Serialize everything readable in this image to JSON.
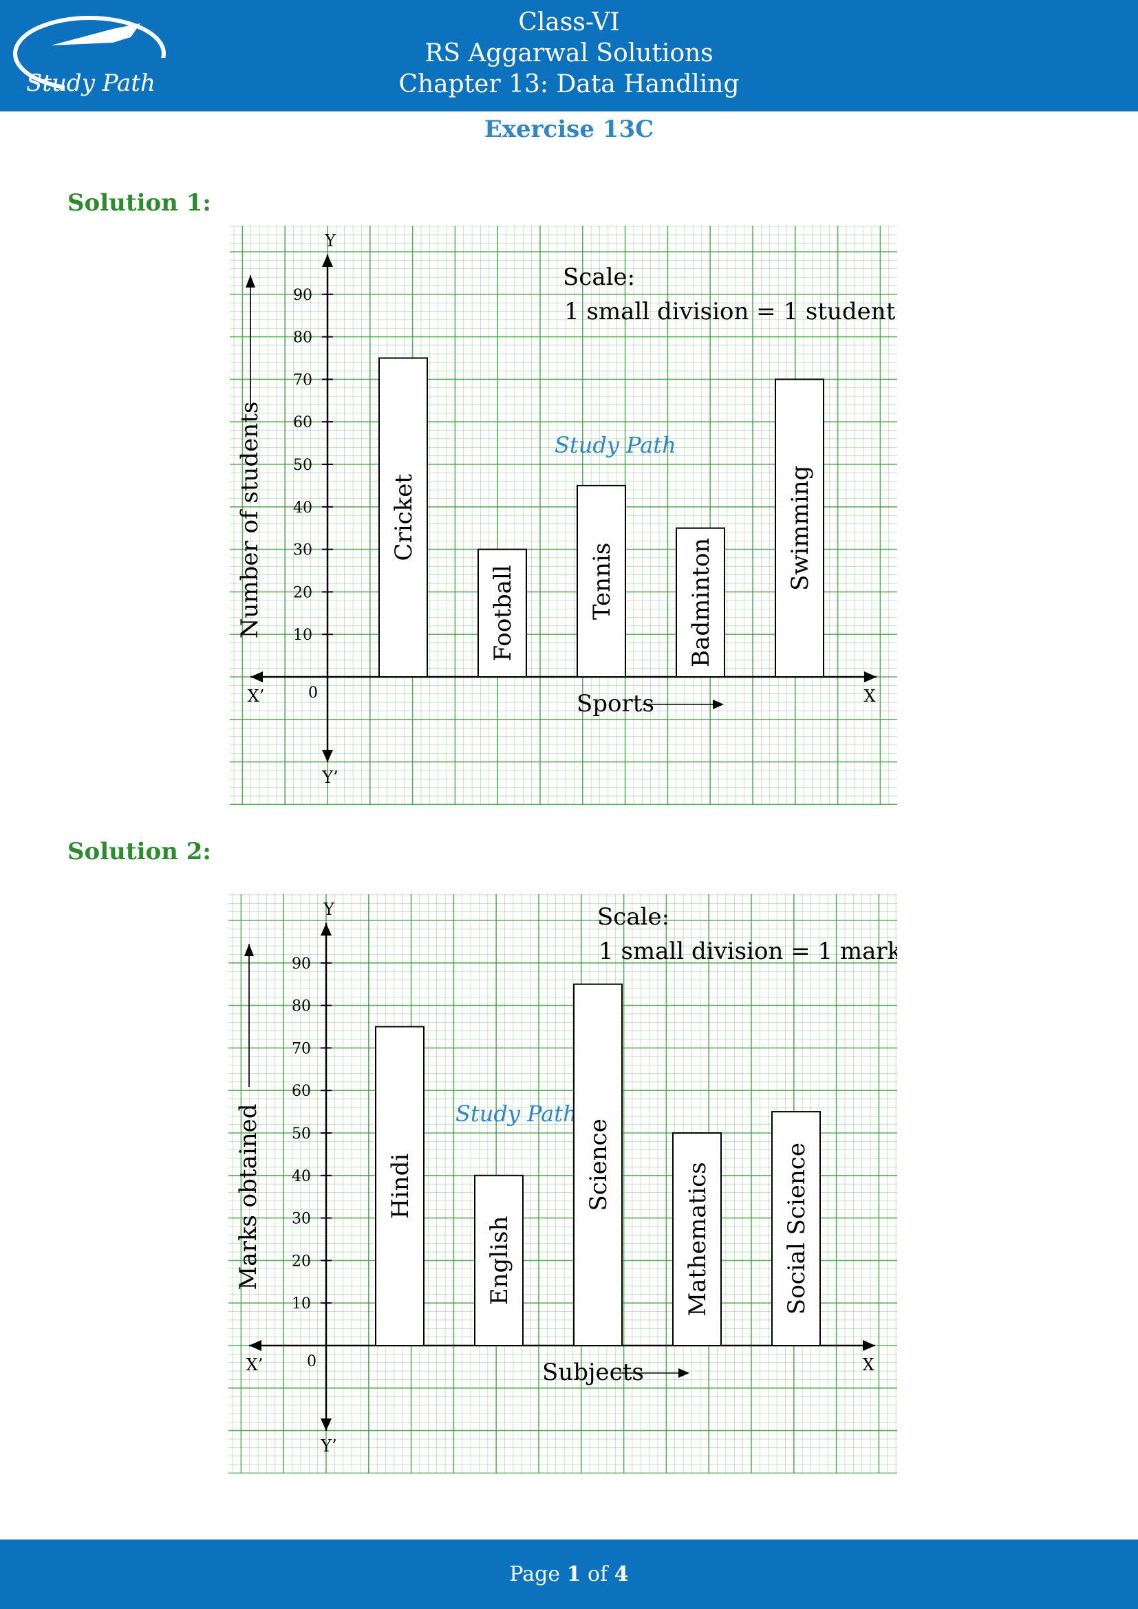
{
  "header": {
    "line1": "Class-VI",
    "line2": "RS Aggarwal Solutions",
    "line3": "Chapter 13: Data Handling",
    "logo_text": "Study Path"
  },
  "exercise_title": "Exercise 13C",
  "watermark_text": "Study Path",
  "solutions": [
    {
      "label": "Solution 1:"
    },
    {
      "label": "Solution 2:"
    }
  ],
  "chart_data": [
    {
      "type": "bar",
      "categories": [
        "Cricket",
        "Football",
        "Tennis",
        "Badminton",
        "Swimming"
      ],
      "values": [
        75,
        30,
        45,
        35,
        70
      ],
      "ylabel": "Number of students",
      "xlabel": "Sports",
      "yticks": [
        "10",
        "20",
        "30",
        "40",
        "50",
        "60",
        "70",
        "80",
        "90"
      ],
      "ylim": [
        0,
        90
      ],
      "origin_label": "0",
      "axis_labels": {
        "x": "X",
        "x_neg": "X’",
        "y": "Y",
        "y_neg": "Y’"
      },
      "scale_title": "Scale:",
      "scale_text": "1 small division = 1 student",
      "grid": true,
      "bar_colors": "#ffffff",
      "grid_color": "#3a9a3a"
    },
    {
      "type": "bar",
      "categories": [
        "Hindi",
        "English",
        "Science",
        "Mathematics",
        "Social Science"
      ],
      "values": [
        75,
        40,
        85,
        50,
        55
      ],
      "ylabel": "Marks obtained",
      "xlabel": "Subjects",
      "yticks": [
        "10",
        "20",
        "30",
        "40",
        "50",
        "60",
        "70",
        "80",
        "90"
      ],
      "ylim": [
        0,
        90
      ],
      "origin_label": "0",
      "axis_labels": {
        "x": "X",
        "x_neg": "X’",
        "y": "Y",
        "y_neg": "Y’"
      },
      "scale_title": "Scale:",
      "scale_text": "1 small division = 1 mark",
      "grid": true,
      "bar_colors": "#ffffff",
      "grid_color": "#3a9a3a"
    }
  ],
  "footer": {
    "prefix": "Page ",
    "current": "1",
    "sep": " of ",
    "total": "4"
  }
}
